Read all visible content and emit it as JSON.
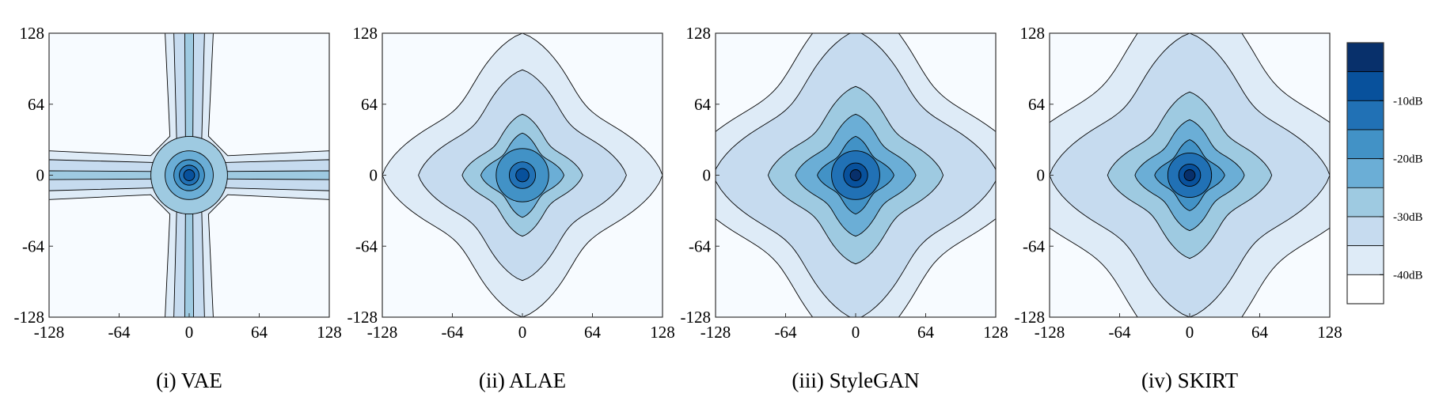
{
  "chart_data": [
    {
      "type": "heatmap",
      "caption": "(i) VAE",
      "xticks": [
        "-128",
        "-64",
        "0",
        "64",
        "128"
      ],
      "yticks": [
        "128",
        "64",
        "0",
        "-64",
        "-128"
      ],
      "xlim": [
        -128,
        128
      ],
      "ylim": [
        -128,
        128
      ],
      "shape": "cross",
      "levels_radii": [
        5,
        9,
        14,
        22,
        35
      ],
      "arm_extent": 128,
      "arm_halfwidth": [
        4,
        14,
        22
      ]
    },
    {
      "type": "heatmap",
      "caption": "(ii) ALAE",
      "xticks": [
        "-128",
        "-64",
        "0",
        "64",
        "128"
      ],
      "yticks": [
        "128",
        "64",
        "0",
        "-64",
        "-128"
      ],
      "xlim": [
        -128,
        128
      ],
      "ylim": [
        -128,
        128
      ],
      "shape": "diamond",
      "levels_radii": [
        128,
        95,
        55,
        38,
        24,
        12,
        6
      ]
    },
    {
      "type": "heatmap",
      "caption": "(iii) StyleGAN",
      "xticks": [
        "-128",
        "-64",
        "0",
        "64",
        "128"
      ],
      "yticks": [
        "128",
        "64",
        "0",
        "-64",
        "-128"
      ],
      "xlim": [
        -128,
        128
      ],
      "ylim": [
        -128,
        128
      ],
      "shape": "diamond",
      "levels_radii": [
        160,
        130,
        80,
        55,
        35,
        22,
        11,
        5
      ]
    },
    {
      "type": "heatmap",
      "caption": "(iv) SKIRT",
      "xticks": [
        "-128",
        "-64",
        "0",
        "64",
        "128"
      ],
      "yticks": [
        "128",
        "64",
        "0",
        "-64",
        "-128"
      ],
      "xlim": [
        -128,
        128
      ],
      "ylim": [
        -128,
        128
      ],
      "shape": "diamond",
      "levels_radii": [
        170,
        128,
        75,
        50,
        32,
        20,
        10,
        5
      ]
    }
  ],
  "colorbar": {
    "ticks": [
      "-10dB",
      "-20dB",
      "-30dB",
      "-40dB"
    ],
    "colors": [
      "#08306b",
      "#08519c",
      "#2171b5",
      "#4292c6",
      "#6baed6",
      "#9ecae1",
      "#c6dbef",
      "#deebf7",
      "#ffffff"
    ]
  },
  "palette": [
    "#f7fbff",
    "#deebf7",
    "#c6dbef",
    "#9ecae1",
    "#6baed6",
    "#4292c6",
    "#2171b5",
    "#08519c",
    "#08306b"
  ]
}
